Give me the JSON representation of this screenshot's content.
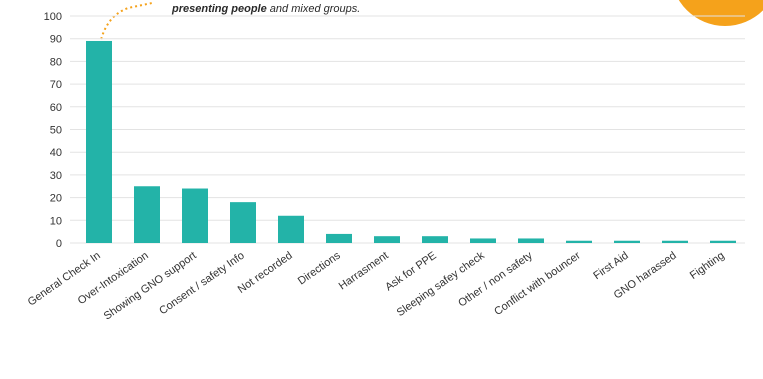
{
  "caption": {
    "bold": "presenting people",
    "rest": " and mixed groups."
  },
  "colors": {
    "bar": "#23b3a8",
    "accent": "#f5a21b",
    "grid": "#e3e3e3"
  },
  "chart_data": {
    "type": "bar",
    "title": "",
    "xlabel": "",
    "ylabel": "",
    "ylim": [
      0,
      100
    ],
    "yticks": [
      0,
      10,
      20,
      30,
      40,
      50,
      60,
      70,
      80,
      90,
      100
    ],
    "grid": true,
    "categories": [
      "General Check In",
      "Over-Intoxication",
      "Showing GNO support",
      "Consent / safety  Info",
      "Not recorded",
      "Directions",
      "Harrasment",
      "Ask for PPE",
      "Sleeping safey check",
      "Other / non safety",
      "Conflict with bouncer",
      "First Aid",
      "GNO harassed",
      "Fighting"
    ],
    "values": [
      89,
      25,
      24,
      18,
      12,
      4,
      3,
      3,
      2,
      2,
      1,
      1,
      1,
      1
    ]
  }
}
